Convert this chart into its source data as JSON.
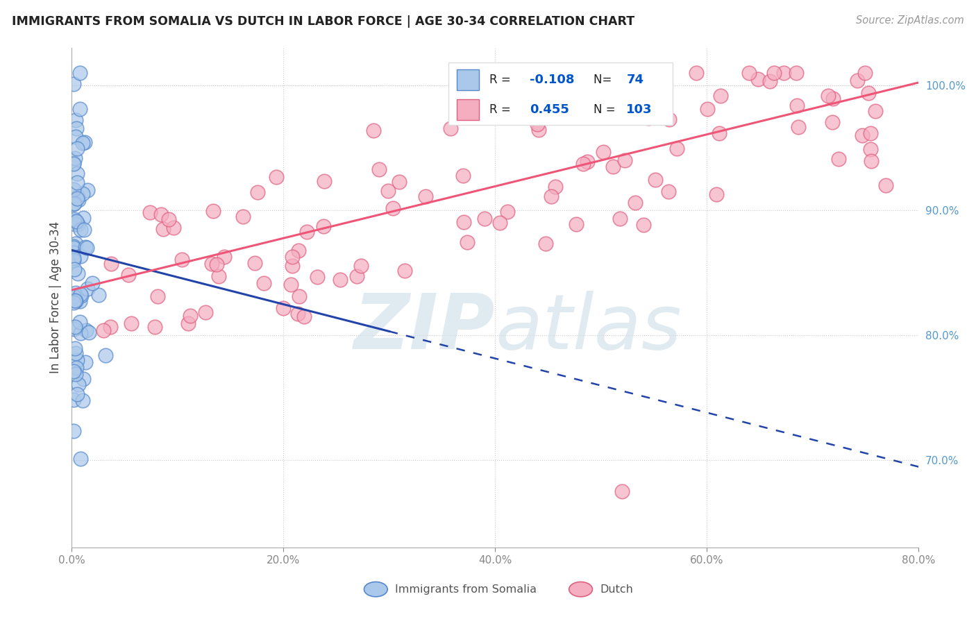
{
  "title": "IMMIGRANTS FROM SOMALIA VS DUTCH IN LABOR FORCE | AGE 30-34 CORRELATION CHART",
  "source": "Source: ZipAtlas.com",
  "ylabel": "In Labor Force | Age 30-34",
  "xlim": [
    0.0,
    0.8
  ],
  "ylim": [
    0.63,
    1.03
  ],
  "yticks": [
    0.7,
    0.8,
    0.9,
    1.0
  ],
  "ytick_labels": [
    "70.0%",
    "80.0%",
    "90.0%",
    "100.0%"
  ],
  "xticks": [
    0.0,
    0.2,
    0.4,
    0.6,
    0.8
  ],
  "xtick_labels": [
    "0.0%",
    "20.0%",
    "40.0%",
    "60.0%",
    "80.0%"
  ],
  "somalia_color": "#aac8ea",
  "dutch_color": "#f5adc0",
  "somalia_edge": "#5588cc",
  "dutch_edge": "#e06080",
  "somalia_line_color": "#2244aa",
  "dutch_line_color": "#ee5577",
  "somalia_R": -0.108,
  "somalia_N": 74,
  "dutch_R": 0.455,
  "dutch_N": 103,
  "legend_R_color": "#0055cc",
  "legend_N_color": "#0055cc",
  "watermark_color": "#ccdde8",
  "background_color": "#ffffff",
  "grid_color": "#cccccc",
  "right_tick_color": "#5599cc"
}
